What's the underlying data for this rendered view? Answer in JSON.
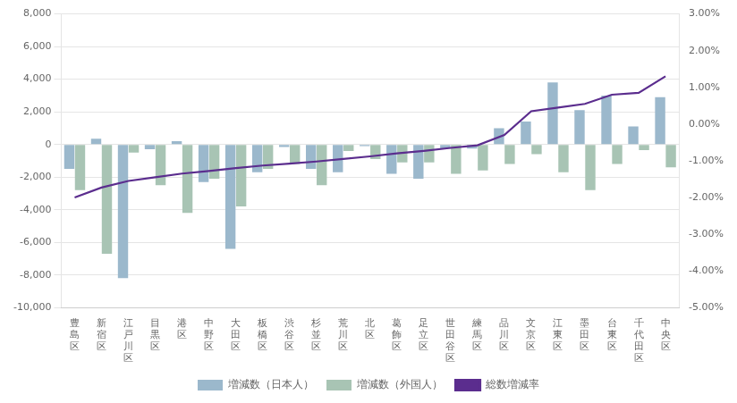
{
  "chart_data": {
    "type": "bar",
    "categories": [
      "豊島区",
      "新宿区",
      "江戸川区",
      "目黒区",
      "港区",
      "中野区",
      "大田区",
      "板橋区",
      "渋谷区",
      "杉並区",
      "荒川区",
      "北区",
      "葛飾区",
      "足立区",
      "世田谷区",
      "練馬区",
      "品川区",
      "文京区",
      "江東区",
      "墨田区",
      "台東区",
      "千代田区",
      "中央区"
    ],
    "series": [
      {
        "name": "増減数（日本人）",
        "color": "#9BB8CC",
        "values": [
          -1500,
          350,
          -8200,
          -300,
          200,
          -2300,
          -6400,
          -1700,
          -150,
          -1500,
          -1700,
          -100,
          -1800,
          -2100,
          -250,
          -250,
          1000,
          1400,
          3800,
          2100,
          3000,
          1100,
          2900
        ]
      },
      {
        "name": "増減数（外国人）",
        "color": "#A8C4B4",
        "values": [
          -2800,
          -6700,
          -500,
          -2500,
          -4200,
          -2100,
          -3800,
          -1500,
          -1200,
          -2500,
          -400,
          -900,
          -1100,
          -1100,
          -1800,
          -1600,
          -1200,
          -600,
          -1700,
          -2800,
          -1200,
          -350,
          -1400
        ]
      },
      {
        "name": "総数増減率",
        "type": "line",
        "color": "#5B2D8E",
        "axis": "y2",
        "values": [
          -2.0,
          -1.73,
          -1.55,
          -1.45,
          -1.35,
          -1.28,
          -1.2,
          -1.13,
          -1.08,
          -1.02,
          -0.95,
          -0.88,
          -0.8,
          -0.73,
          -0.65,
          -0.58,
          -0.3,
          0.35,
          0.45,
          0.55,
          0.8,
          0.85,
          1.3
        ]
      }
    ],
    "ylim": [
      -10000,
      8000
    ],
    "yticks": [
      {
        "value": -10000,
        "label": "-10,000"
      },
      {
        "value": -8000,
        "label": "-8,000"
      },
      {
        "value": -6000,
        "label": "-6,000"
      },
      {
        "value": -4000,
        "label": "-4,000"
      },
      {
        "value": -2000,
        "label": "-2,000"
      },
      0,
      {
        "value": 2000,
        "label": "2,000"
      },
      {
        "value": 4000,
        "label": "4,000"
      },
      {
        "value": 6000,
        "label": "6,000"
      },
      {
        "value": 8000,
        "label": "8,000"
      }
    ],
    "y2lim": [
      -5.0,
      3.0
    ],
    "y2ticks": [
      {
        "value": -5.0,
        "label": "-5.00%"
      },
      {
        "value": -4.0,
        "label": "-4.00%"
      },
      {
        "value": -3.0,
        "label": "-3.00%"
      },
      {
        "value": -2.0,
        "label": "-2.00%"
      },
      {
        "value": -1.0,
        "label": "-1.00%"
      },
      {
        "value": 0.0,
        "label": "0.00%"
      },
      {
        "value": 1.0,
        "label": "1.00%"
      },
      {
        "value": 2.0,
        "label": "2.00%"
      },
      {
        "value": 3.0,
        "label": "3.00%"
      }
    ],
    "grid": true,
    "legend": "bottom"
  }
}
